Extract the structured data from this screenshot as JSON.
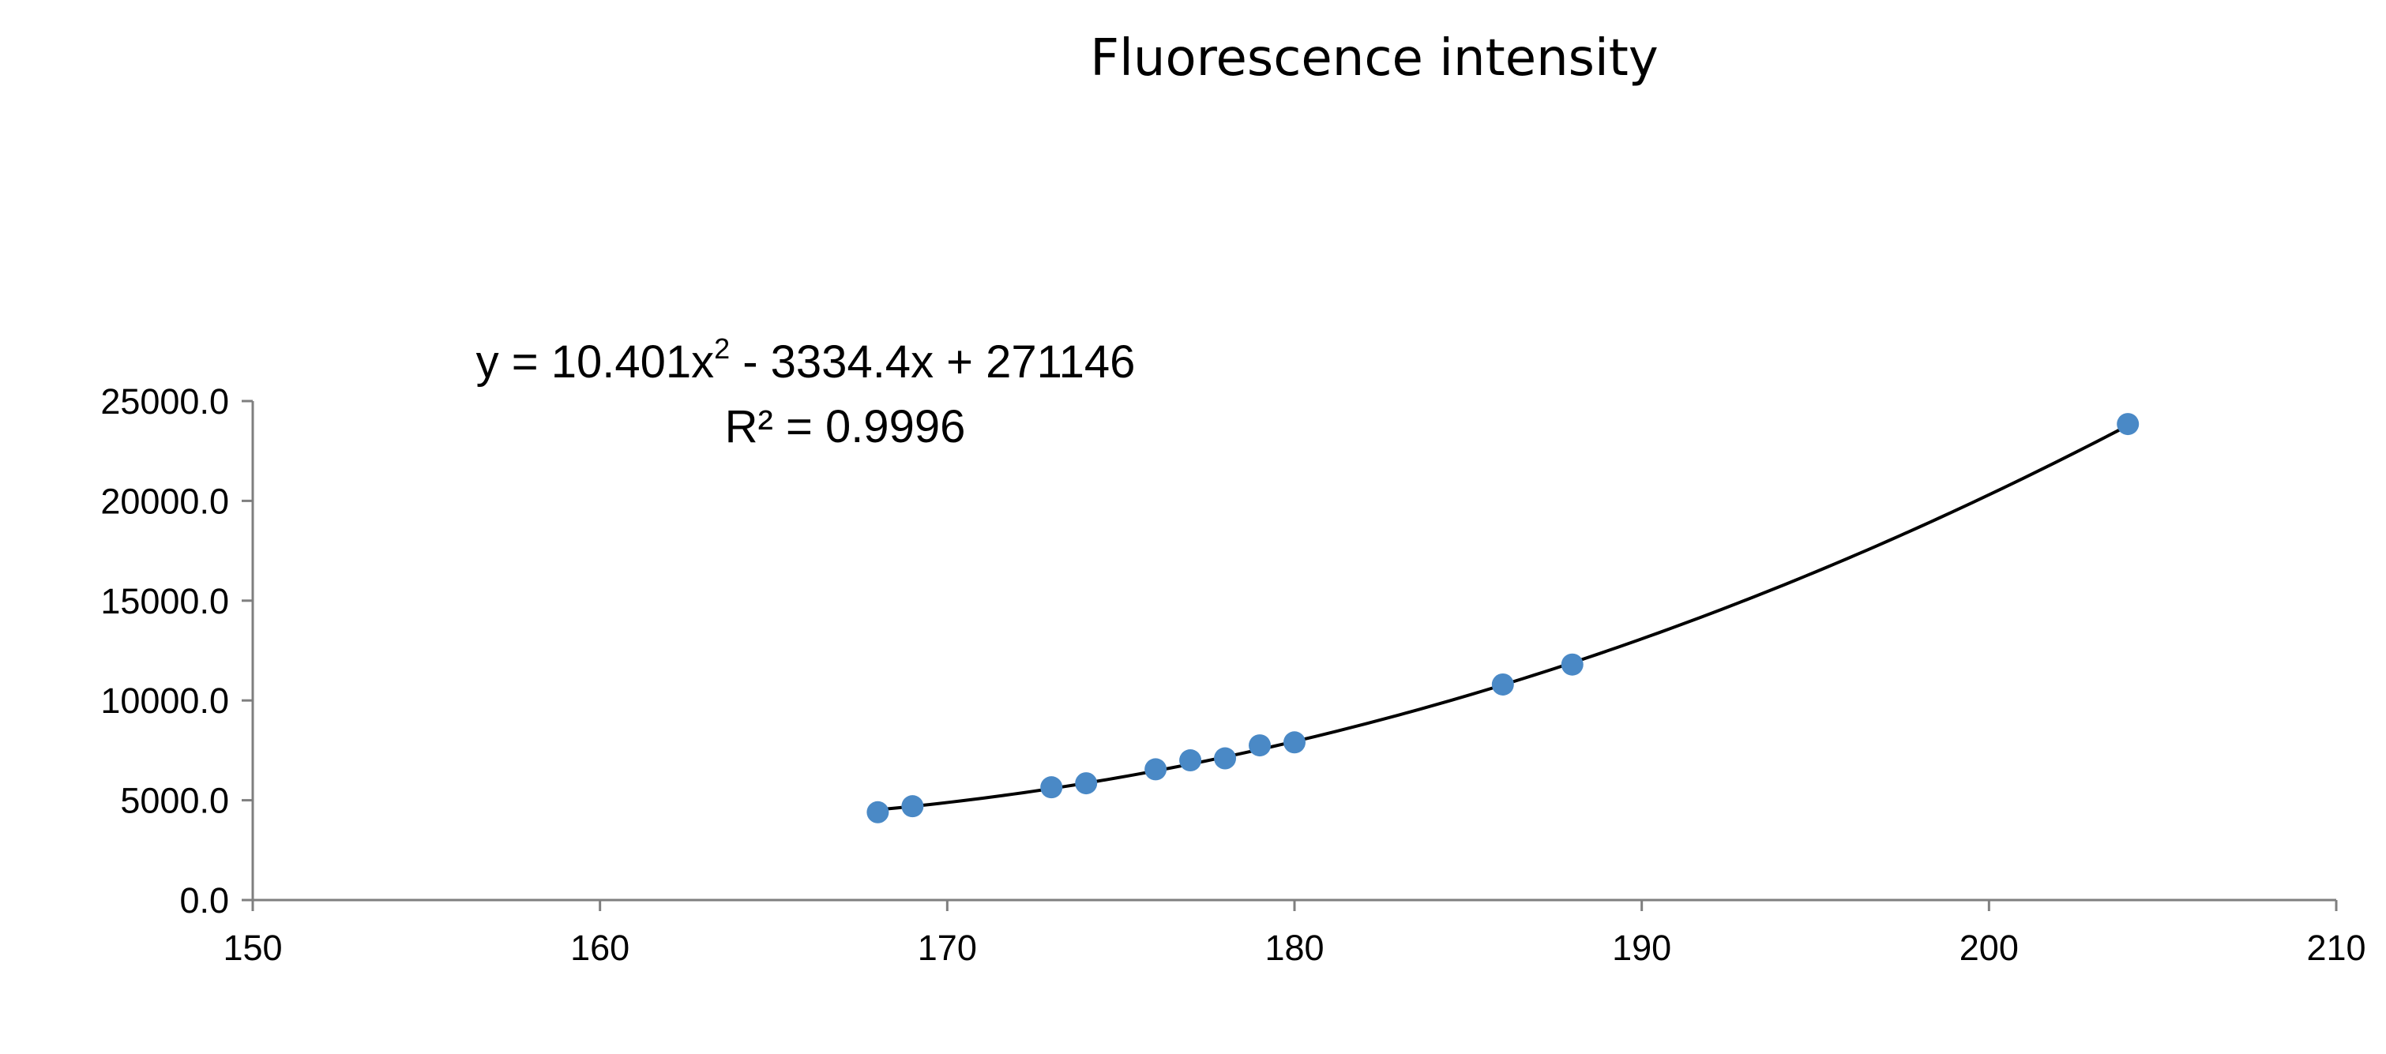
{
  "chart_data": {
    "type": "scatter",
    "title": "Fluorescence intensity",
    "xlabel": "",
    "ylabel": "",
    "xlim": [
      150,
      210
    ],
    "ylim": [
      0,
      25000
    ],
    "x_ticks": [
      150,
      160,
      170,
      180,
      190,
      200,
      210
    ],
    "y_ticks": [
      0,
      5000,
      10000,
      15000,
      20000,
      25000
    ],
    "x_tick_labels": [
      "150",
      "160",
      "170",
      "180",
      "190",
      "200",
      "210"
    ],
    "y_tick_labels": [
      "0.0",
      "5000.0",
      "10000.0",
      "15000.0",
      "20000.0",
      "25000.0"
    ],
    "grid": false,
    "marker_color": "#4a89c6",
    "trendline_color": "#000000",
    "series": [
      {
        "x": [
          168,
          169,
          173,
          174,
          176,
          177,
          178,
          179,
          180,
          186,
          188,
          204
        ],
        "y": [
          4400,
          4700,
          5650,
          5850,
          6550,
          7000,
          7100,
          7750,
          7900,
          10800,
          11800,
          23850
        ]
      }
    ],
    "trendline": {
      "type": "polynomial",
      "coefficients": [
        10.401,
        -3334.4,
        271146
      ],
      "x_range": [
        168,
        204
      ],
      "equation_prefix": "y = 10.401x",
      "equation_exponent": "2",
      "equation_suffix": " - 3334.4x + 271146",
      "r_squared_label": "R² = 0.9996"
    }
  }
}
